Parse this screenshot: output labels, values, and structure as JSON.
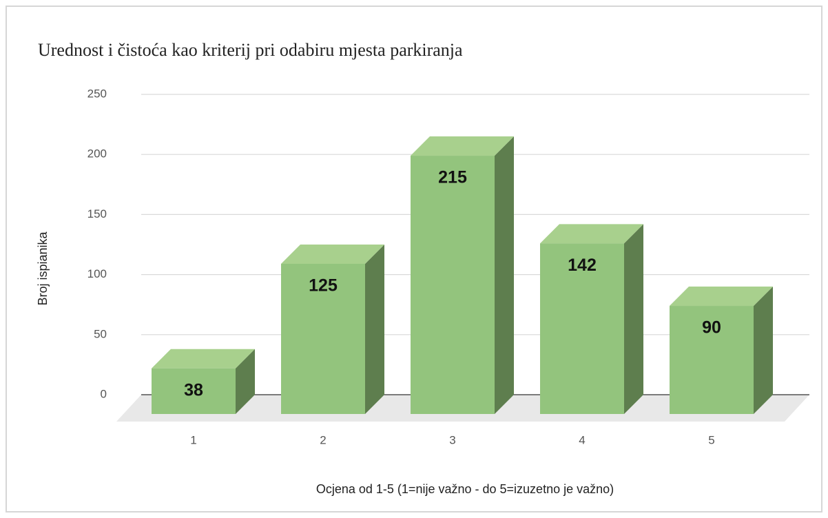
{
  "chart_data": {
    "type": "bar3d",
    "title": "Urednost i čistoća kao kriterij pri odabiru mjesta parkiranja",
    "x_label": "Ocjena od 1-5 (1=nije važno - do 5=izuzetno je važno)",
    "y_label": "Broj ispianika",
    "categories": [
      "1",
      "2",
      "3",
      "4",
      "5"
    ],
    "values": [
      38,
      125,
      215,
      142,
      90
    ],
    "color": "#93c47d",
    "ylim": [
      0,
      250
    ],
    "yticks": [
      0,
      50,
      100,
      150,
      200,
      250
    ],
    "grid": true
  }
}
